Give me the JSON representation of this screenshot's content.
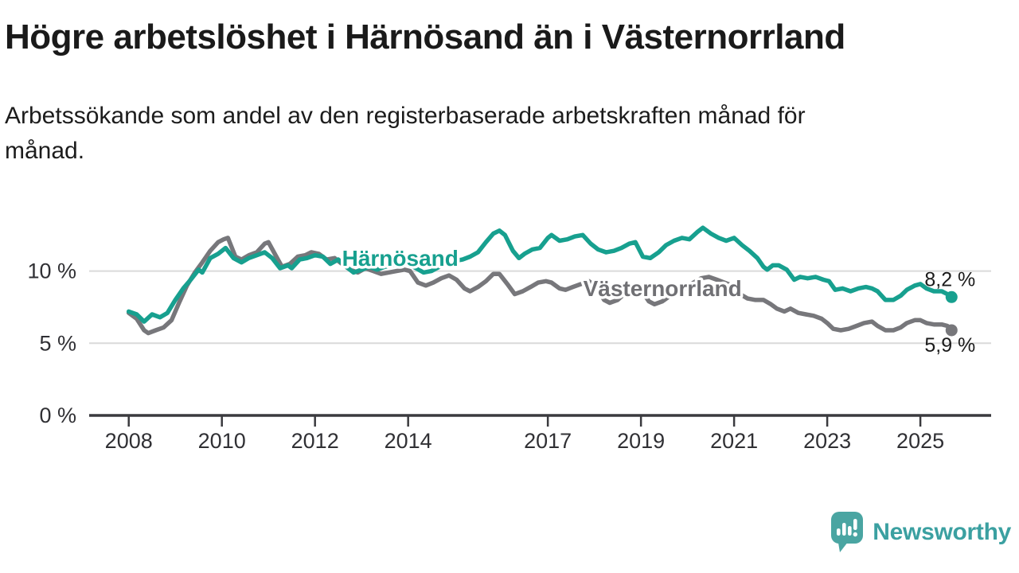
{
  "header": {
    "title": "Högre arbetslöshet i Härnösand än i Västernorrland",
    "subtitle_line1": "Arbetssökande som andel av den registerbaserade arbetskraften månad för",
    "subtitle_line2": "månad."
  },
  "footer": {
    "brand": "Newsworthy"
  },
  "chart_data": {
    "type": "line",
    "title": "Högre arbetslöshet i Härnösand än i Västernorrland",
    "subtitle": "Arbetssökande som andel av den registerbaserade arbetskraften månad för månad.",
    "unit": "%",
    "grid": "horizontal-only",
    "legend": "inline-labels",
    "xlim": [
      2007.15,
      2026.52
    ],
    "ylim": [
      0,
      14.5
    ],
    "x_tick_years": [
      2008,
      2010,
      2012,
      2014,
      2017,
      2019,
      2021,
      2023,
      2025
    ],
    "x_tick_labels": [
      "2008",
      "2010",
      "2012",
      "2014",
      "2017",
      "2019",
      "2021",
      "2023",
      "2025"
    ],
    "y_ticks": [
      {
        "value": 0,
        "label": "0 %"
      },
      {
        "value": 5,
        "label": "5 %"
      },
      {
        "value": 10,
        "label": "10 %"
      }
    ],
    "grid_values": [
      5,
      10
    ],
    "colors": {
      "harnosand": "#17a08f",
      "vasternorrland": "#77777b",
      "axis": "#3a3a3e",
      "gridline": "#dadada"
    },
    "series": [
      {
        "id": "vasternorrland",
        "name": "Västernorrland",
        "color": "#77777b",
        "label_color": "#707074",
        "label_anchor": {
          "x": 2017.76,
          "y": 8.26
        },
        "end_value": 5.9,
        "end_label": "5,9 %",
        "points": [
          [
            2008.0,
            7.1
          ],
          [
            2008.17,
            6.7
          ],
          [
            2008.33,
            5.9
          ],
          [
            2008.42,
            5.7
          ],
          [
            2008.58,
            5.9
          ],
          [
            2008.75,
            6.1
          ],
          [
            2008.92,
            6.6
          ],
          [
            2009.08,
            7.8
          ],
          [
            2009.25,
            9.0
          ],
          [
            2009.42,
            9.9
          ],
          [
            2009.58,
            10.6
          ],
          [
            2009.75,
            11.4
          ],
          [
            2009.92,
            12.0
          ],
          [
            2010.04,
            12.2
          ],
          [
            2010.13,
            12.3
          ],
          [
            2010.29,
            11.0
          ],
          [
            2010.42,
            10.8
          ],
          [
            2010.58,
            11.1
          ],
          [
            2010.75,
            11.3
          ],
          [
            2010.92,
            11.9
          ],
          [
            2011.0,
            12.0
          ],
          [
            2011.17,
            11.0
          ],
          [
            2011.29,
            10.3
          ],
          [
            2011.46,
            10.5
          ],
          [
            2011.63,
            11.0
          ],
          [
            2011.79,
            11.1
          ],
          [
            2011.92,
            11.3
          ],
          [
            2012.08,
            11.2
          ],
          [
            2012.25,
            10.8
          ],
          [
            2012.42,
            10.9
          ],
          [
            2012.58,
            10.5
          ],
          [
            2012.75,
            10.1
          ],
          [
            2012.92,
            9.9
          ],
          [
            2013.08,
            10.2
          ],
          [
            2013.25,
            10.0
          ],
          [
            2013.42,
            9.8
          ],
          [
            2013.58,
            9.9
          ],
          [
            2013.75,
            10.0
          ],
          [
            2013.92,
            10.1
          ],
          [
            2014.04,
            10.0
          ],
          [
            2014.21,
            9.2
          ],
          [
            2014.38,
            9.0
          ],
          [
            2014.54,
            9.2
          ],
          [
            2014.71,
            9.5
          ],
          [
            2014.88,
            9.7
          ],
          [
            2015.04,
            9.4
          ],
          [
            2015.21,
            8.8
          ],
          [
            2015.33,
            8.6
          ],
          [
            2015.5,
            8.9
          ],
          [
            2015.67,
            9.3
          ],
          [
            2015.83,
            9.8
          ],
          [
            2015.96,
            9.8
          ],
          [
            2016.13,
            9.1
          ],
          [
            2016.29,
            8.4
          ],
          [
            2016.46,
            8.6
          ],
          [
            2016.63,
            8.9
          ],
          [
            2016.79,
            9.2
          ],
          [
            2016.96,
            9.3
          ],
          [
            2017.08,
            9.2
          ],
          [
            2017.25,
            8.8
          ],
          [
            2017.38,
            8.7
          ],
          [
            2017.54,
            8.9
          ],
          [
            2017.71,
            9.1
          ],
          [
            2017.88,
            9.3
          ],
          [
            2018.04,
            8.9
          ],
          [
            2018.21,
            8.0
          ],
          [
            2018.33,
            7.8
          ],
          [
            2018.5,
            8.0
          ],
          [
            2018.67,
            8.5
          ],
          [
            2018.83,
            8.9
          ],
          [
            2019.0,
            8.7
          ],
          [
            2019.17,
            7.9
          ],
          [
            2019.29,
            7.7
          ],
          [
            2019.46,
            7.9
          ],
          [
            2019.63,
            8.3
          ],
          [
            2019.79,
            8.6
          ],
          [
            2019.96,
            8.8
          ],
          [
            2020.13,
            9.2
          ],
          [
            2020.29,
            9.5
          ],
          [
            2020.46,
            9.6
          ],
          [
            2020.63,
            9.4
          ],
          [
            2020.79,
            9.2
          ],
          [
            2020.96,
            9.0
          ],
          [
            2021.13,
            8.4
          ],
          [
            2021.29,
            8.1
          ],
          [
            2021.46,
            8.0
          ],
          [
            2021.63,
            8.0
          ],
          [
            2021.79,
            7.7
          ],
          [
            2021.92,
            7.4
          ],
          [
            2022.08,
            7.2
          ],
          [
            2022.21,
            7.4
          ],
          [
            2022.38,
            7.1
          ],
          [
            2022.54,
            7.0
          ],
          [
            2022.71,
            6.9
          ],
          [
            2022.88,
            6.7
          ],
          [
            2023.0,
            6.4
          ],
          [
            2023.13,
            6.0
          ],
          [
            2023.29,
            5.9
          ],
          [
            2023.46,
            6.0
          ],
          [
            2023.63,
            6.2
          ],
          [
            2023.79,
            6.4
          ],
          [
            2023.96,
            6.5
          ],
          [
            2024.08,
            6.2
          ],
          [
            2024.25,
            5.9
          ],
          [
            2024.42,
            5.9
          ],
          [
            2024.58,
            6.1
          ],
          [
            2024.71,
            6.4
          ],
          [
            2024.88,
            6.6
          ],
          [
            2025.0,
            6.6
          ],
          [
            2025.13,
            6.4
          ],
          [
            2025.29,
            6.3
          ],
          [
            2025.46,
            6.3
          ],
          [
            2025.58,
            6.2
          ],
          [
            2025.67,
            5.9
          ]
        ]
      },
      {
        "id": "harnosand",
        "name": "Härnösand",
        "color": "#17a08f",
        "label_color": "#17a08f",
        "label_anchor": {
          "x": 2012.58,
          "y": 10.36
        },
        "end_value": 8.2,
        "end_label": "8,2 %",
        "points": [
          [
            2008.0,
            7.2
          ],
          [
            2008.17,
            7.0
          ],
          [
            2008.33,
            6.5
          ],
          [
            2008.5,
            7.0
          ],
          [
            2008.67,
            6.8
          ],
          [
            2008.83,
            7.1
          ],
          [
            2009.0,
            8.0
          ],
          [
            2009.17,
            8.8
          ],
          [
            2009.33,
            9.4
          ],
          [
            2009.5,
            10.1
          ],
          [
            2009.58,
            9.9
          ],
          [
            2009.75,
            10.9
          ],
          [
            2009.92,
            11.2
          ],
          [
            2010.08,
            11.6
          ],
          [
            2010.25,
            10.9
          ],
          [
            2010.42,
            10.6
          ],
          [
            2010.58,
            10.9
          ],
          [
            2010.75,
            11.1
          ],
          [
            2010.92,
            11.3
          ],
          [
            2011.08,
            10.9
          ],
          [
            2011.25,
            10.2
          ],
          [
            2011.42,
            10.4
          ],
          [
            2011.5,
            10.2
          ],
          [
            2011.67,
            10.8
          ],
          [
            2011.83,
            10.9
          ],
          [
            2012.0,
            11.1
          ],
          [
            2012.17,
            11.0
          ],
          [
            2012.33,
            10.5
          ],
          [
            2012.5,
            10.8
          ],
          [
            2012.67,
            10.3
          ],
          [
            2012.83,
            9.9
          ],
          [
            2013.0,
            10.1
          ],
          [
            2013.17,
            10.3
          ],
          [
            2013.33,
            10.1
          ],
          [
            2013.5,
            10.3
          ],
          [
            2013.67,
            10.4
          ],
          [
            2013.83,
            10.6
          ],
          [
            2014.0,
            10.5
          ],
          [
            2014.17,
            10.2
          ],
          [
            2014.33,
            9.9
          ],
          [
            2014.5,
            10.0
          ],
          [
            2014.67,
            10.3
          ],
          [
            2014.83,
            10.6
          ],
          [
            2015.0,
            10.7
          ],
          [
            2015.17,
            10.8
          ],
          [
            2015.33,
            11.0
          ],
          [
            2015.5,
            11.3
          ],
          [
            2015.67,
            12.0
          ],
          [
            2015.83,
            12.6
          ],
          [
            2015.96,
            12.8
          ],
          [
            2016.08,
            12.5
          ],
          [
            2016.25,
            11.4
          ],
          [
            2016.38,
            10.9
          ],
          [
            2016.5,
            11.2
          ],
          [
            2016.67,
            11.5
          ],
          [
            2016.83,
            11.6
          ],
          [
            2017.0,
            12.3
          ],
          [
            2017.08,
            12.5
          ],
          [
            2017.25,
            12.1
          ],
          [
            2017.42,
            12.2
          ],
          [
            2017.58,
            12.4
          ],
          [
            2017.75,
            12.5
          ],
          [
            2017.92,
            11.9
          ],
          [
            2018.08,
            11.5
          ],
          [
            2018.25,
            11.3
          ],
          [
            2018.42,
            11.4
          ],
          [
            2018.58,
            11.6
          ],
          [
            2018.75,
            11.9
          ],
          [
            2018.88,
            12.0
          ],
          [
            2019.04,
            11.0
          ],
          [
            2019.2,
            10.9
          ],
          [
            2019.38,
            11.3
          ],
          [
            2019.54,
            11.8
          ],
          [
            2019.71,
            12.1
          ],
          [
            2019.88,
            12.3
          ],
          [
            2020.04,
            12.2
          ],
          [
            2020.21,
            12.7
          ],
          [
            2020.33,
            13.0
          ],
          [
            2020.5,
            12.6
          ],
          [
            2020.67,
            12.3
          ],
          [
            2020.83,
            12.1
          ],
          [
            2021.0,
            12.3
          ],
          [
            2021.17,
            11.8
          ],
          [
            2021.33,
            11.4
          ],
          [
            2021.5,
            10.9
          ],
          [
            2021.63,
            10.3
          ],
          [
            2021.71,
            10.1
          ],
          [
            2021.83,
            10.4
          ],
          [
            2021.96,
            10.4
          ],
          [
            2022.13,
            10.1
          ],
          [
            2022.29,
            9.4
          ],
          [
            2022.42,
            9.6
          ],
          [
            2022.58,
            9.5
          ],
          [
            2022.75,
            9.6
          ],
          [
            2022.92,
            9.4
          ],
          [
            2023.04,
            9.3
          ],
          [
            2023.17,
            8.7
          ],
          [
            2023.33,
            8.8
          ],
          [
            2023.5,
            8.6
          ],
          [
            2023.67,
            8.8
          ],
          [
            2023.83,
            8.9
          ],
          [
            2023.96,
            8.8
          ],
          [
            2024.08,
            8.6
          ],
          [
            2024.25,
            8.0
          ],
          [
            2024.42,
            8.0
          ],
          [
            2024.58,
            8.3
          ],
          [
            2024.71,
            8.7
          ],
          [
            2024.88,
            9.0
          ],
          [
            2025.0,
            9.1
          ],
          [
            2025.13,
            8.8
          ],
          [
            2025.29,
            8.6
          ],
          [
            2025.46,
            8.6
          ],
          [
            2025.58,
            8.4
          ],
          [
            2025.67,
            8.2
          ]
        ]
      }
    ]
  }
}
